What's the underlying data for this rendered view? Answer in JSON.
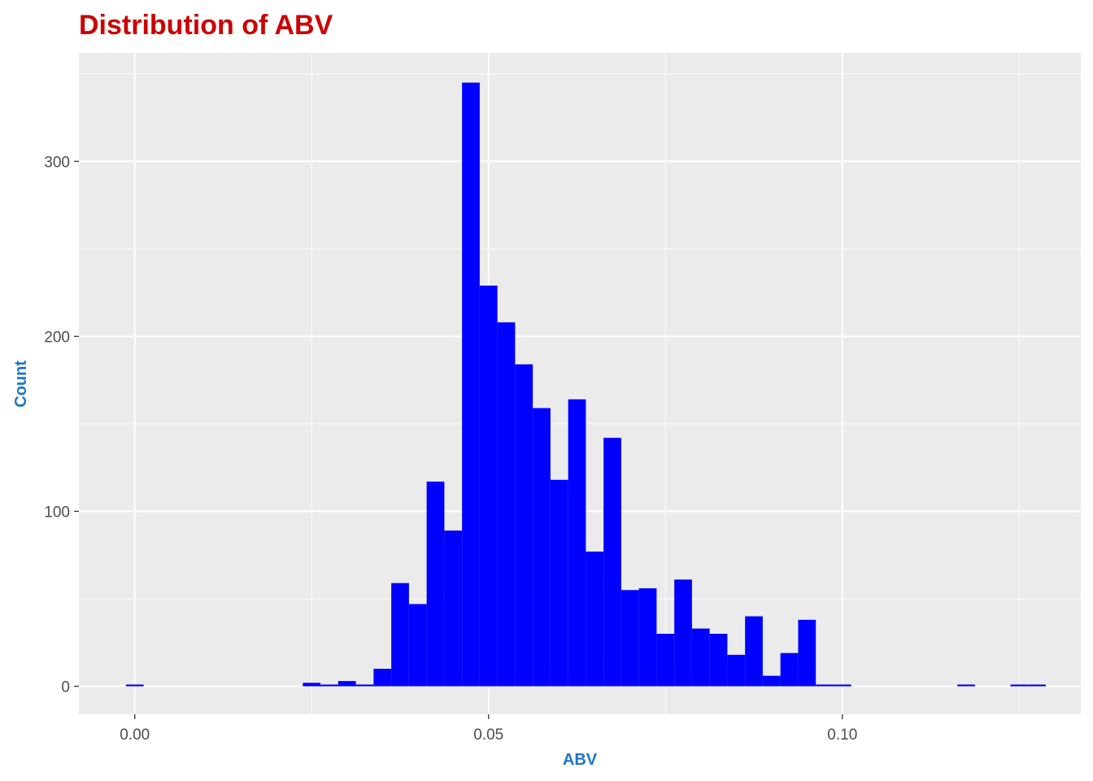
{
  "chart_data": {
    "type": "bar",
    "title": "Distribution of ABV",
    "xlabel": "ABV",
    "ylabel": "Count",
    "xlim": [
      -0.0079,
      0.1337
    ],
    "ylim": [
      -16,
      362
    ],
    "x_ticks": [
      0.0,
      0.05,
      0.1
    ],
    "x_tick_labels": [
      "0.00",
      "0.05",
      "0.10"
    ],
    "y_ticks": [
      0,
      100,
      200,
      300
    ],
    "y_tick_labels": [
      "0",
      "100",
      "200",
      "300"
    ],
    "bin_width": 0.0025,
    "bins": [
      {
        "x": 0.0,
        "count": 1
      },
      {
        "x": 0.025,
        "count": 2
      },
      {
        "x": 0.0275,
        "count": 1
      },
      {
        "x": 0.03,
        "count": 3
      },
      {
        "x": 0.0325,
        "count": 1
      },
      {
        "x": 0.035,
        "count": 10
      },
      {
        "x": 0.0375,
        "count": 59
      },
      {
        "x": 0.04,
        "count": 47
      },
      {
        "x": 0.0425,
        "count": 117
      },
      {
        "x": 0.045,
        "count": 89
      },
      {
        "x": 0.0475,
        "count": 345
      },
      {
        "x": 0.05,
        "count": 229
      },
      {
        "x": 0.0525,
        "count": 208
      },
      {
        "x": 0.055,
        "count": 184
      },
      {
        "x": 0.0575,
        "count": 159
      },
      {
        "x": 0.06,
        "count": 118
      },
      {
        "x": 0.0625,
        "count": 164
      },
      {
        "x": 0.065,
        "count": 77
      },
      {
        "x": 0.0675,
        "count": 142
      },
      {
        "x": 0.07,
        "count": 55
      },
      {
        "x": 0.0725,
        "count": 56
      },
      {
        "x": 0.075,
        "count": 30
      },
      {
        "x": 0.0775,
        "count": 61
      },
      {
        "x": 0.08,
        "count": 33
      },
      {
        "x": 0.0825,
        "count": 30
      },
      {
        "x": 0.085,
        "count": 18
      },
      {
        "x": 0.0875,
        "count": 40
      },
      {
        "x": 0.09,
        "count": 6
      },
      {
        "x": 0.0925,
        "count": 19
      },
      {
        "x": 0.095,
        "count": 38
      },
      {
        "x": 0.0975,
        "count": 1
      },
      {
        "x": 0.1,
        "count": 1
      },
      {
        "x": 0.1175,
        "count": 1
      },
      {
        "x": 0.125,
        "count": 1
      },
      {
        "x": 0.1275,
        "count": 1
      }
    ],
    "grid": true,
    "colors": {
      "bar_fill": "#0000ff",
      "panel_background": "#ebebeb",
      "grid": "#ffffff",
      "title": "#cc0000",
      "axis_title": "#1f75c9",
      "tick_label": "#4d4d4d",
      "tick_mark": "#333333"
    }
  }
}
